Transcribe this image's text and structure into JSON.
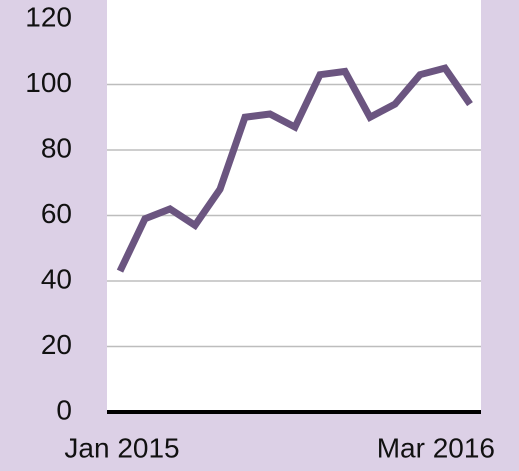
{
  "chart_data": {
    "type": "line",
    "categories": [
      "Jan 2015",
      null,
      null,
      null,
      null,
      null,
      null,
      null,
      null,
      null,
      null,
      null,
      null,
      null,
      "Mar 2016"
    ],
    "series": [
      {
        "color": "#6b5580",
        "values": [
          43,
          59,
          62,
          57,
          68,
          90,
          91,
          87,
          103,
          104,
          90,
          94,
          103,
          105,
          94
        ]
      }
    ],
    "ylim": [
      0,
      120
    ],
    "yticks": [
      0,
      20,
      40,
      60,
      80,
      100,
      120
    ],
    "grid": true
  }
}
